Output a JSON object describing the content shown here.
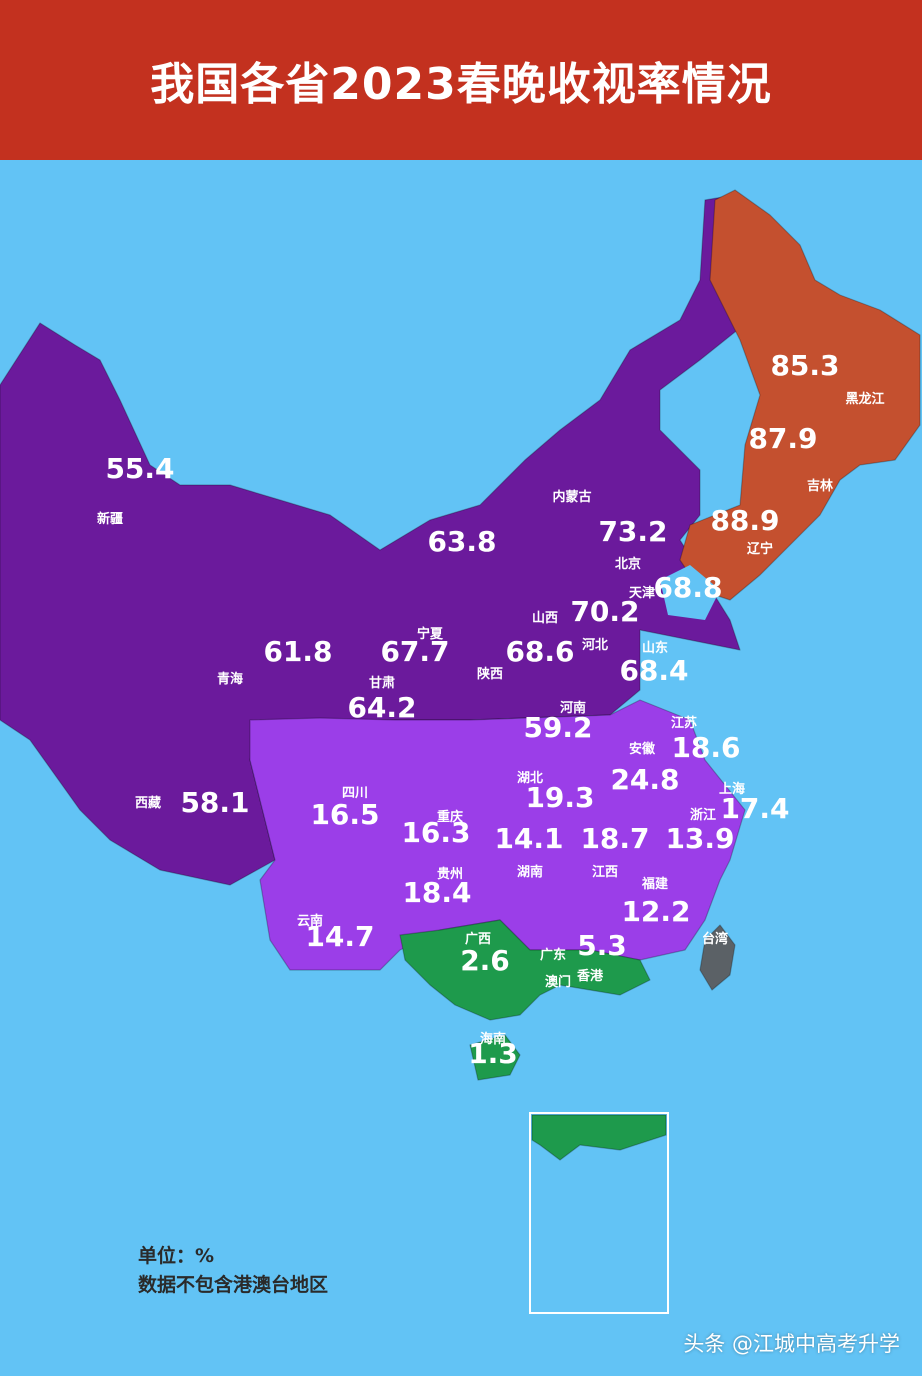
{
  "title": "我国各省2023春晚收视率情况",
  "notes": {
    "unit": "单位：%",
    "exclusion": "数据不包含港澳台地区"
  },
  "watermark": "头条 @江城中高考升学",
  "colors": {
    "sea": "#62c3f5",
    "title_bar": "#c3311f",
    "tier_red": "#c4502f",
    "tier_dark_purple": "#6b1a9c",
    "tier_light_purple": "#9b3ee8",
    "tier_green": "#1e9a4c",
    "no_data": "#5b6166"
  },
  "regions": [
    {
      "id": "xinjiang",
      "name": "新疆",
      "value": "55.4",
      "tier": "dark_purple"
    },
    {
      "id": "neimenggu",
      "name": "内蒙古",
      "value": "63.8",
      "tier": "dark_purple"
    },
    {
      "id": "heilongjiang",
      "name": "黑龙江",
      "value": "85.3",
      "tier": "red"
    },
    {
      "id": "jilin",
      "name": "吉林",
      "value": "87.9",
      "tier": "red"
    },
    {
      "id": "liaoning",
      "name": "辽宁",
      "value": "88.9",
      "tier": "red"
    },
    {
      "id": "beijing",
      "name": "北京",
      "value": "73.2",
      "tier": "dark_purple"
    },
    {
      "id": "tianjin",
      "name": "天津",
      "value": "68.8",
      "tier": "dark_purple"
    },
    {
      "id": "shanxi",
      "name": "山西",
      "value": "70.2",
      "tier": "dark_purple"
    },
    {
      "id": "hebei",
      "name": "河北",
      "value": "",
      "tier": "dark_purple"
    },
    {
      "id": "shandong",
      "name": "山东",
      "value": "68.4",
      "tier": "dark_purple"
    },
    {
      "id": "ningxia",
      "name": "宁夏",
      "value": "67.7",
      "tier": "dark_purple"
    },
    {
      "id": "shaanxi",
      "name": "陕西",
      "value": "68.6",
      "tier": "dark_purple"
    },
    {
      "id": "qinghai",
      "name": "青海",
      "value": "61.8",
      "tier": "dark_purple"
    },
    {
      "id": "gansu",
      "name": "甘肃",
      "value": "64.2",
      "tier": "dark_purple"
    },
    {
      "id": "henan",
      "name": "河南",
      "value": "59.2",
      "tier": "dark_purple"
    },
    {
      "id": "xizang",
      "name": "西藏",
      "value": "58.1",
      "tier": "dark_purple"
    },
    {
      "id": "jiangsu",
      "name": "江苏",
      "value": "18.6",
      "tier": "light_purple"
    },
    {
      "id": "anhui",
      "name": "安徽",
      "value": "24.8",
      "tier": "light_purple"
    },
    {
      "id": "shanghai",
      "name": "上海",
      "value": "17.4",
      "tier": "light_purple"
    },
    {
      "id": "hubei",
      "name": "湖北",
      "value": "19.3",
      "tier": "light_purple"
    },
    {
      "id": "sichuan",
      "name": "四川",
      "value": "16.5",
      "tier": "light_purple"
    },
    {
      "id": "chongqing",
      "name": "重庆",
      "value": "16.3",
      "tier": "light_purple"
    },
    {
      "id": "zhejiang",
      "name": "浙江",
      "value": "13.9",
      "tier": "light_purple"
    },
    {
      "id": "hunan",
      "name": "湖南",
      "value": "14.1",
      "tier": "light_purple"
    },
    {
      "id": "jiangxi",
      "name": "江西",
      "value": "18.7",
      "tier": "light_purple"
    },
    {
      "id": "guizhou",
      "name": "贵州",
      "value": "18.4",
      "tier": "light_purple"
    },
    {
      "id": "fujian",
      "name": "福建",
      "value": "12.2",
      "tier": "light_purple"
    },
    {
      "id": "yunnan",
      "name": "云南",
      "value": "14.7",
      "tier": "light_purple"
    },
    {
      "id": "guangxi",
      "name": "广西",
      "value": "2.6",
      "tier": "green"
    },
    {
      "id": "guangdong",
      "name": "广东",
      "value": "5.3",
      "tier": "green"
    },
    {
      "id": "hainan",
      "name": "海南",
      "value": "1.3",
      "tier": "green"
    },
    {
      "id": "aomen",
      "name": "澳门",
      "value": "",
      "tier": "none"
    },
    {
      "id": "xianggang",
      "name": "香港",
      "value": "",
      "tier": "none"
    },
    {
      "id": "taiwan",
      "name": "台湾",
      "value": "",
      "tier": "no_data"
    }
  ]
}
